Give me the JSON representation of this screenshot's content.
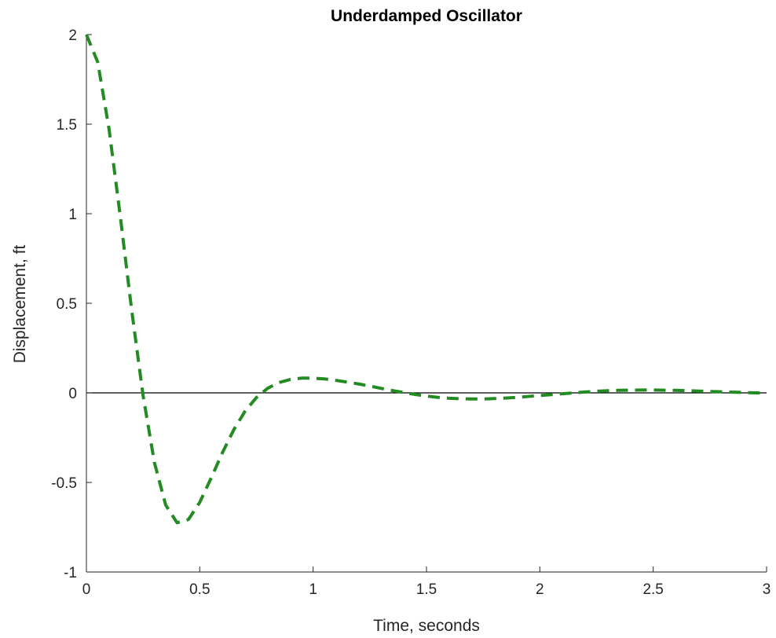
{
  "chart_data": {
    "type": "line",
    "title": "Underdamped Oscillator",
    "xlabel": "Time, seconds",
    "ylabel": "Displacement, ft",
    "xlim": [
      0,
      3
    ],
    "ylim": [
      -1,
      2
    ],
    "xticks": [
      0,
      0.5,
      1,
      1.5,
      2,
      2.5,
      3
    ],
    "xtick_labels": [
      "0",
      "0.5",
      "1",
      "1.5",
      "2",
      "2.5",
      "3"
    ],
    "yticks": [
      -1,
      -0.5,
      0,
      0.5,
      1,
      1.5,
      2
    ],
    "ytick_labels": [
      "-1",
      "-0.5",
      "0",
      "0.5",
      "1",
      "1.5",
      "2"
    ],
    "grid": false,
    "zero_line": true,
    "series": [
      {
        "style": "dashed",
        "color": "#228B22",
        "x": [
          0,
          0.05,
          0.1,
          0.15,
          0.2,
          0.25,
          0.3,
          0.35,
          0.4,
          0.45,
          0.5,
          0.55,
          0.6,
          0.65,
          0.7,
          0.75,
          0.8,
          0.85,
          0.9,
          0.95,
          1.0,
          1.05,
          1.1,
          1.15,
          1.2,
          1.25,
          1.3,
          1.35,
          1.4,
          1.45,
          1.5,
          1.55,
          1.6,
          1.65,
          1.7,
          1.75,
          1.8,
          1.85,
          1.9,
          1.95,
          2.0,
          2.05,
          2.1,
          2.15,
          2.2,
          2.25,
          2.3,
          2.35,
          2.4,
          2.45,
          2.5,
          2.55,
          2.6,
          2.65,
          2.7,
          2.75,
          2.8,
          2.85,
          2.9,
          2.95,
          3.0
        ],
        "y": [
          2.0,
          1.846,
          1.472,
          0.98,
          0.459,
          -0.015,
          -0.389,
          -0.627,
          -0.725,
          -0.707,
          -0.611,
          -0.476,
          -0.334,
          -0.206,
          -0.102,
          -0.026,
          0.026,
          0.058,
          0.075,
          0.082,
          0.082,
          0.078,
          0.07,
          0.06,
          0.05,
          0.038,
          0.025,
          0.013,
          0.002,
          -0.009,
          -0.018,
          -0.025,
          -0.03,
          -0.033,
          -0.034,
          -0.034,
          -0.032,
          -0.029,
          -0.025,
          -0.02,
          -0.015,
          -0.01,
          -0.005,
          0.0,
          0.005,
          0.009,
          0.012,
          0.014,
          0.015,
          0.016,
          0.016,
          0.015,
          0.014,
          0.012,
          0.01,
          0.008,
          0.006,
          0.004,
          0.002,
          0.0,
          -0.001
        ]
      }
    ]
  }
}
